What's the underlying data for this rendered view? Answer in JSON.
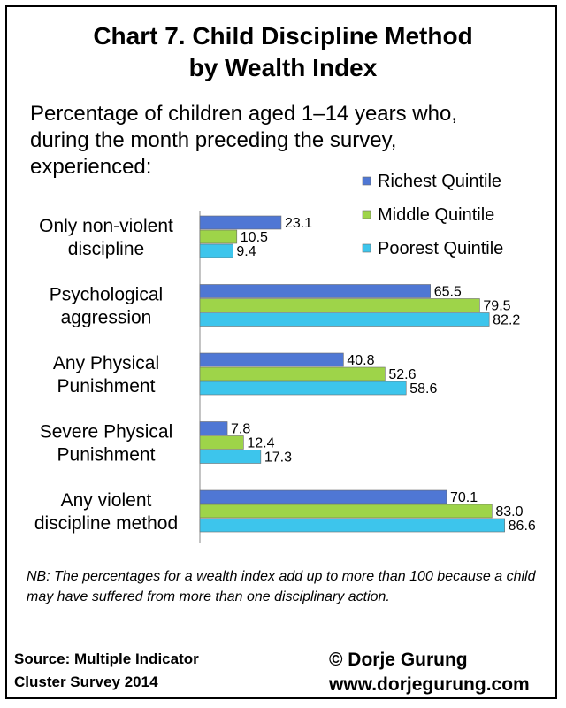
{
  "chart_data": {
    "type": "bar",
    "orientation": "horizontal",
    "title": "Chart 7. Child Discipline Method by Wealth Index",
    "title_lines": [
      "Chart 7. Child Discipline Method",
      "by Wealth Index"
    ],
    "subtitle_lines": [
      "Percentage of children aged 1–14 years who,",
      "during the month preceding the survey,",
      "experienced:"
    ],
    "categories": [
      [
        "Only non-violent",
        "discipline"
      ],
      [
        "Psychological",
        "aggression"
      ],
      [
        "Any Physical",
        "Punishment"
      ],
      [
        "Severe Physical",
        "Punishment"
      ],
      [
        "Any violent",
        "discipline method"
      ]
    ],
    "series": [
      {
        "name": "Richest Quintile",
        "color": "#4f77d4",
        "values": [
          23.1,
          65.5,
          40.8,
          7.8,
          70.1
        ],
        "labels": [
          "23.1",
          "65.5",
          "40.8",
          "7.8",
          "70.1"
        ]
      },
      {
        "name": "Middle Quintile",
        "color": "#9ed449",
        "values": [
          10.5,
          79.5,
          52.6,
          12.4,
          83.0
        ],
        "labels": [
          "10.5",
          "79.5",
          "52.6",
          "12.4",
          "83.0"
        ]
      },
      {
        "name": "Poorest Quintile",
        "color": "#3dc5ec",
        "values": [
          9.4,
          82.2,
          58.6,
          17.3,
          86.6
        ],
        "labels": [
          "9.4",
          "82.2",
          "58.6",
          "17.3",
          "86.6"
        ]
      }
    ],
    "xlim": [
      0,
      100
    ],
    "grid": false,
    "legend_position": "top-right"
  },
  "note": "NB: The percentages for a wealth index add up to more than 100 because a child may have suffered from more than one disciplinary action.",
  "source_lines": [
    "Source: Multiple Indicator",
    "Cluster Survey 2014"
  ],
  "credit_lines": [
    "© Dorje Gurung",
    "www.dorjegurung.com"
  ]
}
